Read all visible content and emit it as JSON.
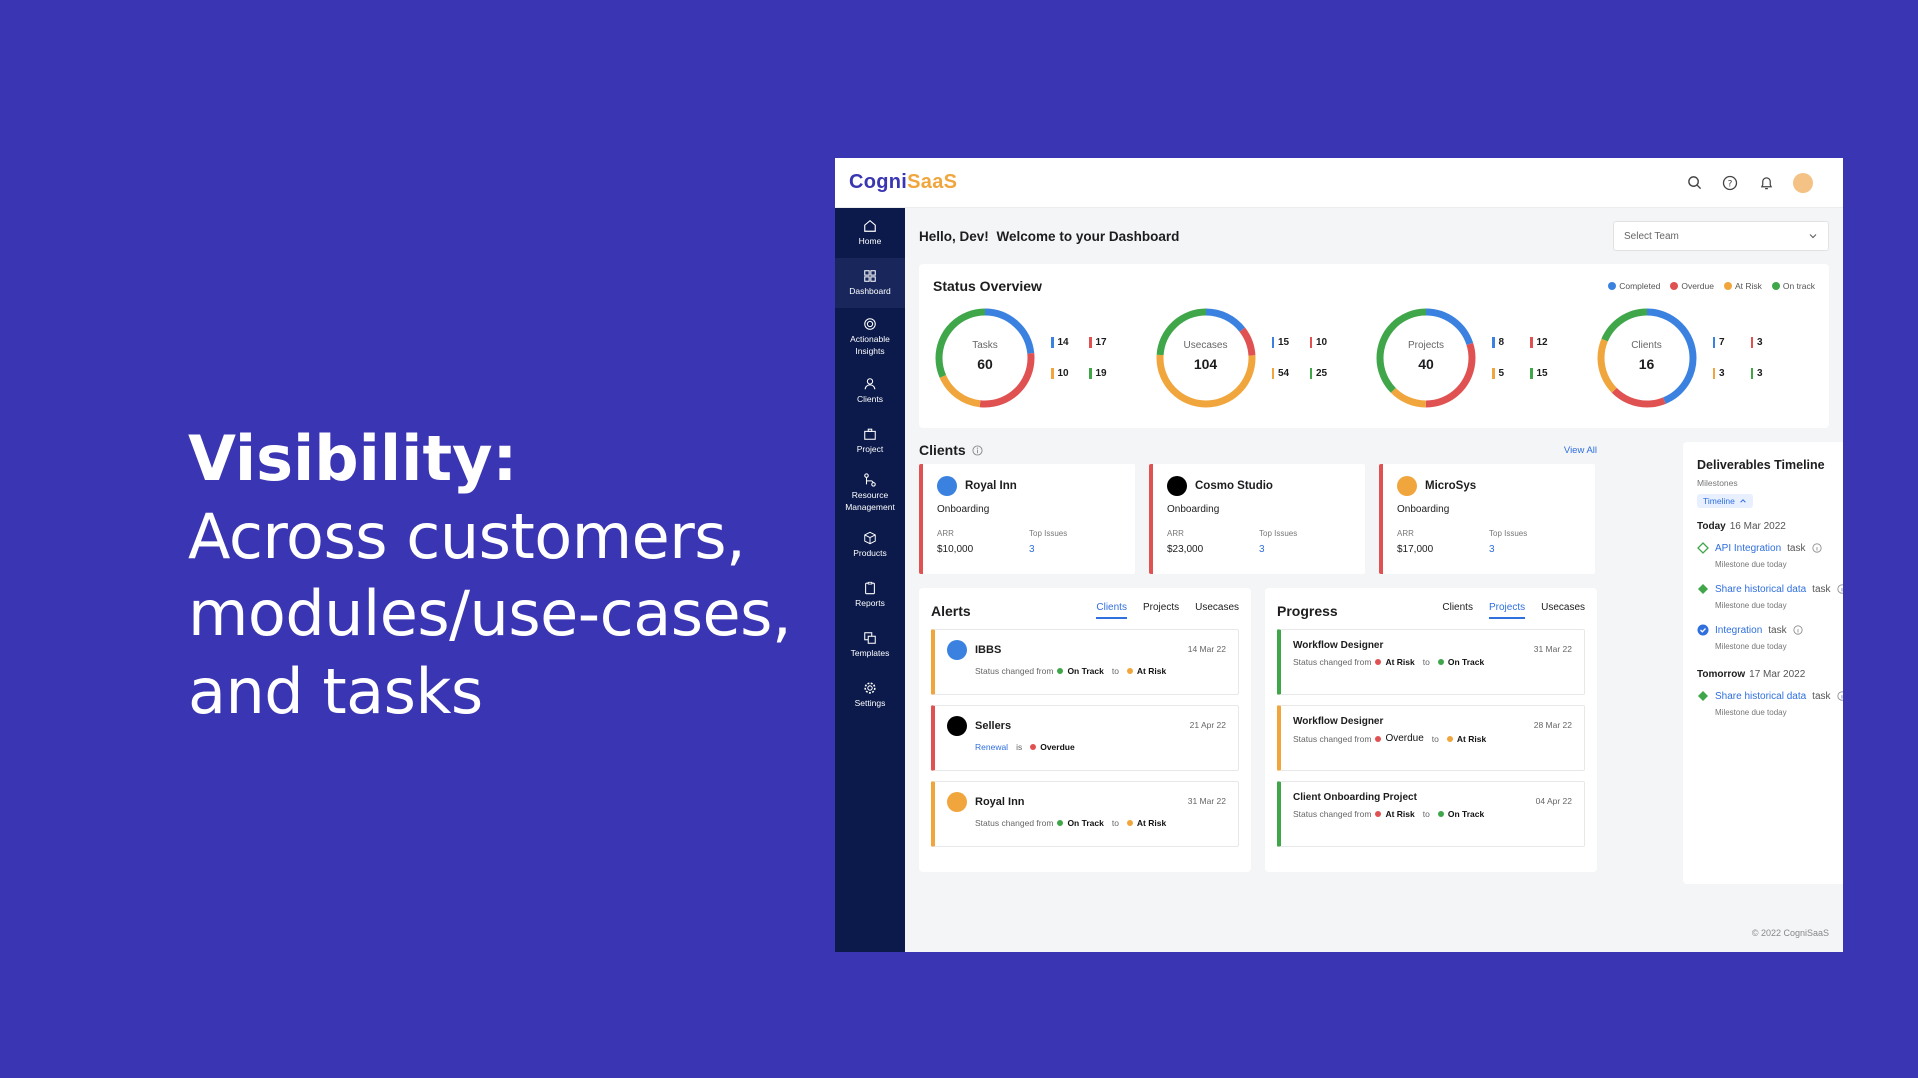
{
  "headline": {
    "title": "Visibility:",
    "line1": "Across customers,",
    "line2": "modules/use-cases,",
    "line3": "and tasks"
  },
  "app": {
    "logo_part1": "Cogni",
    "logo_part2": "SaaS",
    "footer": "© 2022 CogniSaaS"
  },
  "sidebar": {
    "items": [
      {
        "label": "Home"
      },
      {
        "label": "Dashboard"
      },
      {
        "label": "Actionable Insights"
      },
      {
        "label": "Clients"
      },
      {
        "label": "Project"
      },
      {
        "label": "Resource Management"
      },
      {
        "label": "Products"
      },
      {
        "label": "Reports"
      },
      {
        "label": "Templates"
      },
      {
        "label": "Settings"
      }
    ]
  },
  "greeting": {
    "hello": "Hello, Dev!",
    "welcome": "Welcome to your Dashboard"
  },
  "team_select": {
    "placeholder": "Select Team"
  },
  "status_overview": {
    "title": "Status Overview",
    "legend": [
      "Completed",
      "Overdue",
      "At Risk",
      "On track"
    ],
    "colors": {
      "completed": "#3b82e0",
      "overdue": "#e05252",
      "at_risk": "#f0a63d",
      "on_track": "#3fa64a"
    },
    "donuts": [
      {
        "label": "Tasks",
        "value": "60",
        "completed": "14",
        "overdue": "17",
        "at_risk": "10",
        "on_track": "19"
      },
      {
        "label": "Usecases",
        "value": "104",
        "completed": "15",
        "overdue": "10",
        "at_risk": "54",
        "on_track": "25"
      },
      {
        "label": "Projects",
        "value": "40",
        "completed": "8",
        "overdue": "12",
        "at_risk": "5",
        "on_track": "15"
      },
      {
        "label": "Clients",
        "value": "16",
        "completed": "7",
        "overdue": "3",
        "at_risk": "3",
        "on_track": "3"
      }
    ]
  },
  "clients": {
    "title": "Clients",
    "view_all": "View All",
    "arr_label": "ARR",
    "issues_label": "Top Issues",
    "items": [
      {
        "name": "Royal Inn",
        "stage": "Onboarding",
        "arr": "$10,000",
        "issues": "3",
        "color": "#3b82e0"
      },
      {
        "name": "Cosmo Studio",
        "stage": "Onboarding",
        "arr": "$23,000",
        "issues": "3",
        "color": "#000000"
      },
      {
        "name": "MicroSys",
        "stage": "Onboarding",
        "arr": "$17,000",
        "issues": "3",
        "color": "#f0a63d"
      }
    ]
  },
  "alerts": {
    "title": "Alerts",
    "tabs": [
      "Clients",
      "Projects",
      "Usecases"
    ],
    "items": [
      {
        "name": "IBBS",
        "date": "14 Mar 22",
        "prefix": "Status changed from",
        "from": "On Track",
        "mid": "to",
        "to": "At Risk"
      },
      {
        "name": "Sellers",
        "date": "21 Apr 22",
        "prefix": "Renewal",
        "mid": "is",
        "to": "Overdue"
      },
      {
        "name": "Royal Inn",
        "date": "31 Mar 22",
        "prefix": "Status changed from",
        "from": "On Track",
        "mid": "to",
        "to": "At Risk"
      }
    ]
  },
  "progress": {
    "title": "Progress",
    "tabs": [
      "Clients",
      "Projects",
      "Usecases"
    ],
    "items": [
      {
        "name": "Workflow Designer",
        "date": "31 Mar 22",
        "prefix": "Status changed from",
        "from": "At Risk",
        "mid": "to",
        "to": "On Track"
      },
      {
        "name": "Workflow Designer",
        "date": "28 Mar 22",
        "prefix": "Status changed from",
        "from": "Overdue",
        "mid": "to",
        "to": "At Risk"
      },
      {
        "name": "Client Onboarding Project",
        "date": "04 Apr 22",
        "prefix": "Status changed from",
        "from": "At Risk",
        "mid": "to",
        "to": "On Track"
      }
    ]
  },
  "timeline": {
    "title": "Deliverables Timeline",
    "subtitle": "Milestones",
    "pill": "Timeline",
    "today": {
      "label": "Today",
      "date": "16 Mar 2022"
    },
    "tomorrow": {
      "label": "Tomorrow",
      "date": "17 Mar 2022"
    },
    "task_word": "task",
    "due": "Milestone due today",
    "today_items": [
      "API Integration",
      "Share historical data",
      "Integration"
    ],
    "tomorrow_items": [
      "Share historical data"
    ]
  }
}
